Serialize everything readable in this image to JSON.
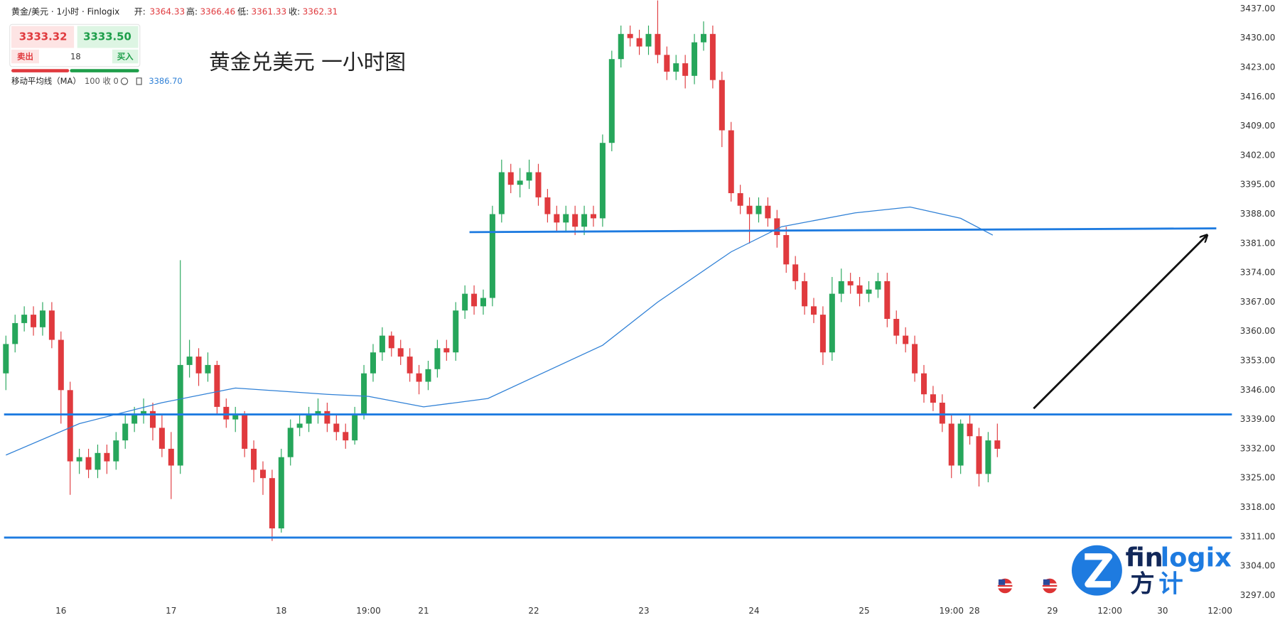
{
  "header": {
    "symbol": "黄金/美元 · 1小时 · Finlogix",
    "open_label": "开:",
    "open": "3364.33",
    "high_label": "高:",
    "high": "3366.46",
    "low_label": "低:",
    "low": "3361.33",
    "close_label": "收:",
    "close": "3362.31"
  },
  "quote": {
    "bid": "3333.32",
    "ask": "3333.50",
    "sell": "卖出",
    "spread": "18",
    "buy": "买入"
  },
  "indicator": {
    "name": "移动平均线（MA）",
    "params": "100 收 0",
    "value": "3386.70"
  },
  "logo": {
    "latin_a": "fin",
    "latin_b": "logix",
    "cn_a": "方",
    "cn_b": "计"
  },
  "chart_data": {
    "type": "candlestick",
    "title": "黄金兑美元 一小时图",
    "up_color": "#26a65b",
    "down_color": "#e03a3e",
    "grid": false,
    "x": [
      -12,
      -10,
      -8,
      -6,
      -4,
      -2,
      0,
      2,
      4,
      6,
      8,
      10,
      12,
      14,
      16,
      18,
      20,
      22,
      24,
      26,
      28,
      30,
      32,
      34,
      36,
      38,
      40,
      42,
      44,
      46,
      48,
      50,
      52,
      54,
      56,
      58,
      60,
      62,
      64,
      66,
      68,
      70,
      72,
      74,
      76,
      78,
      80,
      82,
      84,
      86,
      88,
      90,
      92,
      94,
      96,
      98,
      100,
      102,
      104,
      106,
      108,
      110,
      112,
      114,
      116,
      118,
      120,
      122,
      124,
      126,
      128,
      130,
      132,
      134,
      136,
      138,
      140,
      142,
      144,
      146,
      148,
      150,
      152,
      154,
      156,
      158,
      160,
      162,
      164,
      166,
      168,
      170,
      172,
      174,
      176,
      178,
      180,
      182,
      184,
      186,
      188,
      190,
      192,
      194,
      196,
      198,
      200,
      202,
      204
    ],
    "open": [
      3350,
      3357,
      3362,
      3364,
      3361,
      3365,
      3358,
      3346,
      3329,
      3330,
      3327,
      3331,
      3329,
      3334,
      3338,
      3340,
      3341,
      3337,
      3332,
      3328,
      3352,
      3354,
      3350,
      3352,
      3342,
      3339,
      3340,
      3332,
      3327,
      3325,
      3313,
      3330,
      3337,
      3338,
      3340,
      3341,
      3338,
      3336,
      3334,
      3340,
      3350,
      3355,
      3359,
      3356,
      3354,
      3350,
      3348,
      3351,
      3356,
      3355,
      3365,
      3369,
      3366,
      3368,
      3388,
      3398,
      3395,
      3396,
      3398,
      3392,
      3388,
      3386,
      3388,
      3385,
      3388,
      3387,
      3405,
      3425,
      3431,
      3430,
      3428,
      3431,
      3426,
      3422,
      3424,
      3421,
      3429,
      3431,
      3420,
      3408,
      3393,
      3390,
      3388,
      3390,
      3387,
      3383,
      3376,
      3372,
      3366,
      3364,
      3355,
      3369,
      3372,
      3371,
      3369,
      3370,
      3372,
      3363,
      3359,
      3357,
      3350,
      3345,
      3343,
      3338,
      3328,
      3338,
      3335,
      3326,
      3334
    ],
    "high": [
      3359,
      3364,
      3366,
      3366,
      3367,
      3367,
      3360,
      3348,
      3332,
      3332,
      3333,
      3333,
      3336,
      3340,
      3342,
      3344,
      3343,
      3340,
      3336,
      3377,
      3358,
      3356,
      3355,
      3353,
      3344,
      3342,
      3341,
      3334,
      3329,
      3327,
      3332,
      3339,
      3340,
      3342,
      3344,
      3343,
      3340,
      3338,
      3342,
      3352,
      3357,
      3361,
      3360,
      3358,
      3356,
      3352,
      3353,
      3358,
      3358,
      3367,
      3371,
      3371,
      3370,
      3390,
      3401,
      3400,
      3399,
      3401,
      3400,
      3394,
      3390,
      3390,
      3390,
      3390,
      3390,
      3407,
      3427,
      3433,
      3433,
      3432,
      3433,
      3439,
      3428,
      3426,
      3426,
      3431,
      3434,
      3433,
      3422,
      3410,
      3395,
      3392,
      3392,
      3392,
      3389,
      3385,
      3378,
      3374,
      3368,
      3366,
      3373,
      3375,
      3374,
      3373,
      3372,
      3374,
      3374,
      3365,
      3361,
      3359,
      3352,
      3347,
      3345,
      3340,
      3339,
      3340,
      3337,
      3336,
      3338
    ],
    "low": [
      3346,
      3355,
      3360,
      3359,
      3359,
      3356,
      3338,
      3321,
      3326,
      3325,
      3325,
      3326,
      3327,
      3332,
      3336,
      3338,
      3334,
      3330,
      3320,
      3326,
      3349,
      3347,
      3348,
      3340,
      3337,
      3336,
      3330,
      3324,
      3321,
      3310,
      3312,
      3328,
      3335,
      3336,
      3338,
      3336,
      3334,
      3332,
      3333,
      3339,
      3348,
      3353,
      3354,
      3352,
      3348,
      3345,
      3346,
      3349,
      3353,
      3353,
      3363,
      3364,
      3364,
      3366,
      3386,
      3393,
      3392,
      3394,
      3390,
      3386,
      3384,
      3384,
      3383,
      3383,
      3385,
      3385,
      3403,
      3423,
      3428,
      3426,
      3426,
      3424,
      3420,
      3420,
      3418,
      3419,
      3427,
      3418,
      3404,
      3391,
      3388,
      3381,
      3386,
      3385,
      3380,
      3374,
      3370,
      3364,
      3362,
      3352,
      3353,
      3367,
      3369,
      3366,
      3367,
      3368,
      3361,
      3357,
      3355,
      3348,
      3343,
      3341,
      3336,
      3325,
      3326,
      3333,
      3323,
      3324,
      3330
    ],
    "close": [
      3357,
      3362,
      3364,
      3361,
      3365,
      3358,
      3346,
      3329,
      3330,
      3327,
      3331,
      3329,
      3334,
      3338,
      3340,
      3341,
      3337,
      3332,
      3328,
      3352,
      3354,
      3350,
      3352,
      3342,
      3339,
      3340,
      3332,
      3327,
      3325,
      3313,
      3330,
      3337,
      3338,
      3340,
      3341,
      3338,
      3336,
      3334,
      3340,
      3350,
      3355,
      3359,
      3356,
      3354,
      3350,
      3348,
      3351,
      3356,
      3355,
      3365,
      3369,
      3366,
      3368,
      3388,
      3398,
      3395,
      3396,
      3398,
      3392,
      3388,
      3386,
      3388,
      3385,
      3388,
      3387,
      3405,
      3425,
      3431,
      3430,
      3428,
      3431,
      3426,
      3422,
      3424,
      3421,
      3429,
      3431,
      3420,
      3408,
      3393,
      3390,
      3388,
      3390,
      3387,
      3383,
      3376,
      3372,
      3366,
      3364,
      3355,
      3369,
      3372,
      3371,
      3369,
      3370,
      3372,
      3363,
      3359,
      3357,
      3350,
      3345,
      3343,
      3338,
      3328,
      3338,
      3335,
      3326,
      3334,
      3332
    ],
    "ma": {
      "color": "#2f80d6",
      "x": [
        -12,
        4,
        22,
        38,
        58,
        67,
        79,
        93,
        118,
        130,
        146,
        157,
        173,
        185,
        196,
        203
      ],
      "values": [
        3330.5,
        3338,
        3343,
        3346.5,
        3345,
        3344.5,
        3342,
        3344,
        3356.7,
        3367,
        3379,
        3385,
        3388.3,
        3389.7,
        3387,
        3383
      ]
    },
    "level_color": "#1e7be0",
    "levels": [
      {
        "x": [
          89,
          251.7
        ],
        "y": [
          3383.7,
          3384.6
        ]
      },
      {
        "x": [
          -12.4,
          255.1
        ],
        "y": [
          3340.2,
          3340.2
        ]
      },
      {
        "x": [
          -12.4,
          255.1
        ],
        "y": [
          3310.8,
          3310.8
        ]
      }
    ],
    "arrow": {
      "color": "#111111",
      "x": [
        211.9,
        249.6
      ],
      "y": [
        3341.6,
        3382.9
      ]
    },
    "xlim": [
      -12.4,
      255.1
    ],
    "ylim": [
      3295.6,
      3439.1
    ],
    "xticks": [
      {
        "value": 0,
        "label": "16"
      },
      {
        "value": 24,
        "label": "17"
      },
      {
        "value": 48,
        "label": "18"
      },
      {
        "value": 67,
        "label": "19:00"
      },
      {
        "value": 79,
        "label": "21"
      },
      {
        "value": 103,
        "label": "22"
      },
      {
        "value": 127,
        "label": "23"
      },
      {
        "value": 151,
        "label": "24"
      },
      {
        "value": 175,
        "label": "25"
      },
      {
        "value": 194,
        "label": "19:00"
      },
      {
        "value": 199,
        "label": "28"
      },
      {
        "value": 216,
        "label": "29"
      },
      {
        "value": 228.5,
        "label": "12:00"
      },
      {
        "value": 240,
        "label": "30"
      },
      {
        "value": 252.5,
        "label": "12:00"
      }
    ],
    "yticks": [
      {
        "value": 3437,
        "label": "3437.00"
      },
      {
        "value": 3430,
        "label": "3430.00"
      },
      {
        "value": 3423,
        "label": "3423.00"
      },
      {
        "value": 3416,
        "label": "3416.00"
      },
      {
        "value": 3409,
        "label": "3409.00"
      },
      {
        "value": 3402,
        "label": "3402.00"
      },
      {
        "value": 3395,
        "label": "3395.00"
      },
      {
        "value": 3388,
        "label": "3388.00"
      },
      {
        "value": 3381,
        "label": "3381.00"
      },
      {
        "value": 3374,
        "label": "3374.00"
      },
      {
        "value": 3367,
        "label": "3367.00"
      },
      {
        "value": 3360,
        "label": "3360.00"
      },
      {
        "value": 3353,
        "label": "3353.00"
      },
      {
        "value": 3346,
        "label": "3346.00"
      },
      {
        "value": 3339,
        "label": "3339.00"
      },
      {
        "value": 3332,
        "label": "3332.00"
      },
      {
        "value": 3325,
        "label": "3325.00"
      },
      {
        "value": 3318,
        "label": "3318.00"
      },
      {
        "value": 3311,
        "label": "3311.00"
      },
      {
        "value": 3304,
        "label": "3304.00"
      },
      {
        "value": 3297,
        "label": "3297.00"
      }
    ]
  }
}
